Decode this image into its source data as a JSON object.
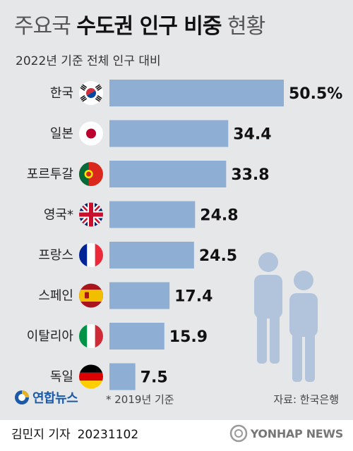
{
  "title": {
    "part1": "주요국",
    "part2": "수도권 인구 비중",
    "part3": "현황"
  },
  "subtitle": "2022년 기준 전체 인구 대비",
  "note": "* 2019년 기준",
  "source": "자료: 한국은행",
  "logo": {
    "name": "연합뉴스"
  },
  "credit": {
    "author": "김민지 기자",
    "date": "20231102"
  },
  "watermark": "YONHAP NEWS",
  "colors": {
    "bar": "#8eaed3",
    "background": "#e6e7e9",
    "people": "#b1c4db",
    "text": "#111111"
  },
  "chart_data": {
    "type": "bar",
    "orientation": "horizontal",
    "categories": [
      "한국",
      "일본",
      "포르투갈",
      "영국*",
      "프랑스",
      "스페인",
      "이탈리아",
      "독일"
    ],
    "values": [
      50.5,
      34.4,
      33.8,
      24.8,
      24.5,
      17.4,
      15.9,
      7.5
    ],
    "value_labels": [
      "50.5%",
      "34.4",
      "33.8",
      "24.8",
      "24.5",
      "17.4",
      "15.9",
      "7.5"
    ],
    "flag_icons": [
      "korea-flag-icon",
      "japan-flag-icon",
      "portugal-flag-icon",
      "uk-flag-icon",
      "france-flag-icon",
      "spain-flag-icon",
      "italy-flag-icon",
      "germany-flag-icon"
    ],
    "xlim": [
      0,
      50.5
    ],
    "unit": "%"
  }
}
